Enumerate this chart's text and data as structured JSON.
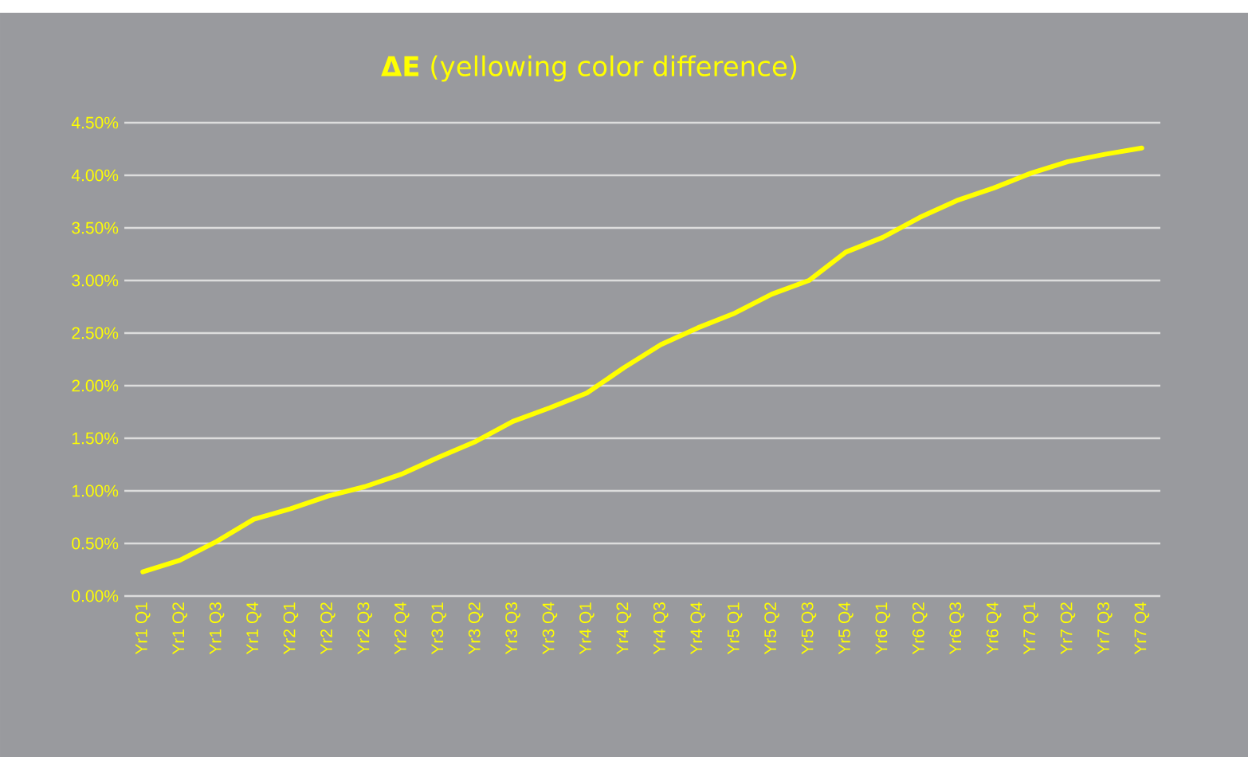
{
  "chart_data": {
    "type": "line",
    "title": "**ΔE** (yellowing color difference)",
    "categories": [
      "Yr1 Q1",
      "Yr1 Q2",
      "Yr1 Q3",
      "Yr1 Q4",
      "Yr2 Q1",
      "Yr2 Q2",
      "Yr2 Q3",
      "Yr2 Q4",
      "Yr3 Q1",
      "Yr3 Q2",
      "Yr3 Q3",
      "Yr3 Q4",
      "Yr4 Q1",
      "Yr4 Q2",
      "Yr4 Q3",
      "Yr4 Q4",
      "Yr5 Q1",
      "Yr5 Q2",
      "Yr5 Q3",
      "Yr5 Q4",
      "Yr6 Q1",
      "Yr6 Q2",
      "Yr6 Q3",
      "Yr6 Q4",
      "Yr7 Q1",
      "Yr7 Q2",
      "Yr7 Q3",
      "Yr7 Q4"
    ],
    "series": [
      {
        "color": "#ffff00",
        "values": [
          0.23,
          0.34,
          0.52,
          0.73,
          0.83,
          0.95,
          1.04,
          1.16,
          1.32,
          1.47,
          1.66,
          1.79,
          1.93,
          2.17,
          2.39,
          2.55,
          2.69,
          2.87,
          3.0,
          3.27,
          3.41,
          3.6,
          3.76,
          3.88,
          4.02,
          4.13,
          4.2,
          4.26
        ]
      }
    ],
    "ylim": [
      0,
      4.5
    ],
    "yticks": [
      {
        "value": 0,
        "label": "0.00%"
      },
      {
        "value": 0.5,
        "label": "0.50%"
      },
      {
        "value": 1,
        "label": "1.00%"
      },
      {
        "value": 1.5,
        "label": "1.50%"
      },
      {
        "value": 2,
        "label": "2.00%"
      },
      {
        "value": 2.5,
        "label": "2.50%"
      },
      {
        "value": 3,
        "label": "3.00%"
      },
      {
        "value": 3.5,
        "label": "3.50%"
      },
      {
        "value": 4,
        "label": "4.00%"
      },
      {
        "value": 4.5,
        "label": "4.50%"
      }
    ],
    "grid": "y",
    "marker": "none",
    "line_style": "solid"
  }
}
